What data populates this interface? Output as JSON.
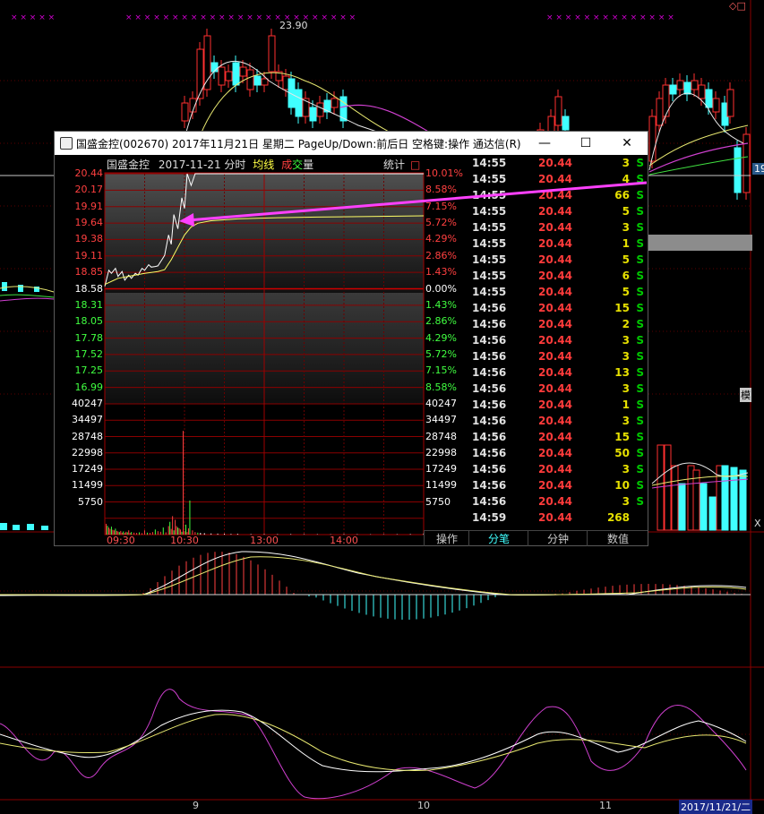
{
  "background_chart": {
    "high_label": "23.90",
    "right_price_tag": "19",
    "right_side_label": "模",
    "date_axis": [
      "9",
      "10",
      "11"
    ],
    "bottom_right_date": "2017/11/21/二",
    "top_right_icons": "◇□",
    "bottom_right_marker": "X"
  },
  "window": {
    "title": "国盛金控(002670) 2017年11月21日 星期二 PageUp/Down:前后日 空格键:操作 通达信(R)",
    "minimize_icon": "—",
    "maximize_icon": "☐",
    "close_icon": "✕"
  },
  "chart_header": {
    "stock_name": "国盛金控",
    "date_type": "2017-11-21 分时",
    "avg_label": "均线",
    "vol_label_1": "成",
    "vol_label_2": "交",
    "vol_label_3": "量",
    "stats_label": "统计",
    "stats_box": "□"
  },
  "chart_data": {
    "type": "line",
    "title": "",
    "x_ticks": [
      "09:30",
      "10:30",
      "13:00",
      "14:00"
    ],
    "prev_close": 18.58,
    "price_ticks": [
      "20.44",
      "20.17",
      "19.91",
      "19.64",
      "19.38",
      "19.11",
      "18.85",
      "18.58",
      "18.31",
      "18.05",
      "17.78",
      "17.52",
      "17.25",
      "16.99"
    ],
    "pct_ticks": [
      "10.01%",
      "8.58%",
      "7.15%",
      "5.72%",
      "4.29%",
      "2.86%",
      "1.43%",
      "0.00%",
      "1.43%",
      "2.86%",
      "4.29%",
      "5.72%",
      "7.15%",
      "8.58%"
    ],
    "volume_ticks": [
      "40247",
      "34497",
      "28748",
      "22998",
      "17249",
      "11499",
      "5750"
    ],
    "ylim": [
      16.72,
      20.44
    ],
    "series": [
      {
        "name": "",
        "minute": [
          0,
          3,
          5,
          8,
          10,
          13,
          15,
          18,
          20,
          23,
          25,
          28,
          30,
          33,
          35,
          38,
          40,
          43,
          45,
          48,
          50,
          52,
          55,
          58,
          60,
          62,
          65,
          68,
          70,
          75,
          80,
          90,
          100,
          120,
          150,
          180,
          210,
          240
        ],
        "values": [
          18.62,
          18.88,
          18.83,
          18.91,
          18.78,
          18.86,
          18.72,
          18.8,
          18.75,
          18.83,
          18.8,
          18.91,
          18.88,
          18.97,
          18.93,
          18.94,
          18.95,
          19.05,
          19.12,
          19.45,
          19.3,
          19.78,
          19.55,
          20.05,
          19.88,
          20.44,
          20.25,
          20.44,
          20.44,
          20.44,
          20.44,
          20.44,
          20.44,
          20.44,
          20.44,
          20.44,
          20.44,
          20.44
        ]
      },
      {
        "name": "均线",
        "minute": [
          0,
          10,
          20,
          30,
          40,
          45,
          50,
          55,
          60,
          65,
          70,
          80,
          100,
          130,
          160,
          200,
          240
        ],
        "values": [
          18.65,
          18.75,
          18.79,
          18.83,
          18.86,
          18.89,
          19.05,
          19.25,
          19.45,
          19.58,
          19.64,
          19.68,
          19.71,
          19.73,
          19.74,
          19.75,
          19.76
        ]
      }
    ],
    "volume": {
      "minute": [
        1,
        2,
        3,
        4,
        5,
        6,
        7,
        8,
        9,
        10,
        11,
        12,
        13,
        14,
        15,
        16,
        17,
        18,
        19,
        20,
        22,
        24,
        26,
        28,
        30,
        32,
        34,
        36,
        38,
        40,
        42,
        44,
        46,
        48,
        49,
        50,
        51,
        52,
        53,
        54,
        55,
        56,
        57,
        58,
        59,
        60,
        61,
        62,
        63,
        64,
        66,
        68,
        70,
        72,
        75,
        80,
        85,
        90,
        95,
        100,
        110,
        120,
        130,
        140,
        150,
        160,
        170,
        180,
        190,
        200,
        210,
        220,
        230,
        240
      ],
      "values": [
        3800,
        3100,
        2500,
        2000,
        2800,
        1700,
        1500,
        2100,
        1300,
        1100,
        900,
        1300,
        700,
        1100,
        600,
        1000,
        800,
        1500,
        600,
        900,
        700,
        600,
        800,
        500,
        1500,
        700,
        600,
        900,
        1800,
        1200,
        1000,
        2500,
        800,
        3000,
        4500,
        2000,
        6500,
        1500,
        5200,
        3000,
        2500,
        2200,
        1800,
        1000,
        36500,
        1200,
        3500,
        900,
        2200,
        12000,
        1500,
        900,
        700,
        600,
        500,
        400,
        350,
        300,
        250,
        300,
        200,
        200,
        180,
        200,
        150,
        150,
        120,
        200,
        150,
        120,
        100,
        150,
        200,
        350
      ]
    }
  },
  "trades": [
    {
      "time": "14:55",
      "price": "20.44",
      "volume": "3",
      "flag": "S"
    },
    {
      "time": "14:55",
      "price": "20.44",
      "volume": "4",
      "flag": "S"
    },
    {
      "time": "14:55",
      "price": "20.44",
      "volume": "66",
      "flag": "S"
    },
    {
      "time": "14:55",
      "price": "20.44",
      "volume": "5",
      "flag": "S"
    },
    {
      "time": "14:55",
      "price": "20.44",
      "volume": "3",
      "flag": "S"
    },
    {
      "time": "14:55",
      "price": "20.44",
      "volume": "1",
      "flag": "S"
    },
    {
      "time": "14:55",
      "price": "20.44",
      "volume": "5",
      "flag": "S"
    },
    {
      "time": "14:55",
      "price": "20.44",
      "volume": "6",
      "flag": "S"
    },
    {
      "time": "14:55",
      "price": "20.44",
      "volume": "5",
      "flag": "S"
    },
    {
      "time": "14:56",
      "price": "20.44",
      "volume": "15",
      "flag": "S"
    },
    {
      "time": "14:56",
      "price": "20.44",
      "volume": "2",
      "flag": "S"
    },
    {
      "time": "14:56",
      "price": "20.44",
      "volume": "3",
      "flag": "S"
    },
    {
      "time": "14:56",
      "price": "20.44",
      "volume": "3",
      "flag": "S"
    },
    {
      "time": "14:56",
      "price": "20.44",
      "volume": "13",
      "flag": "S"
    },
    {
      "time": "14:56",
      "price": "20.44",
      "volume": "3",
      "flag": "S"
    },
    {
      "time": "14:56",
      "price": "20.44",
      "volume": "1",
      "flag": "S"
    },
    {
      "time": "14:56",
      "price": "20.44",
      "volume": "3",
      "flag": "S"
    },
    {
      "time": "14:56",
      "price": "20.44",
      "volume": "15",
      "flag": "S"
    },
    {
      "time": "14:56",
      "price": "20.44",
      "volume": "50",
      "flag": "S"
    },
    {
      "time": "14:56",
      "price": "20.44",
      "volume": "3",
      "flag": "S"
    },
    {
      "time": "14:56",
      "price": "20.44",
      "volume": "10",
      "flag": "S"
    },
    {
      "time": "14:56",
      "price": "20.44",
      "volume": "3",
      "flag": "S"
    },
    {
      "time": "14:59",
      "price": "20.44",
      "volume": "268",
      "flag": ""
    }
  ],
  "tabs": [
    "操作",
    "分笔",
    "分钟",
    "数值"
  ],
  "colors": {
    "up": "#ff3b3b",
    "down": "#00d000",
    "avg": "#ffff66",
    "price": "#ffffff",
    "cyan": "#40ffff",
    "magenta": "#ff40ff",
    "grid": "#a00000"
  }
}
